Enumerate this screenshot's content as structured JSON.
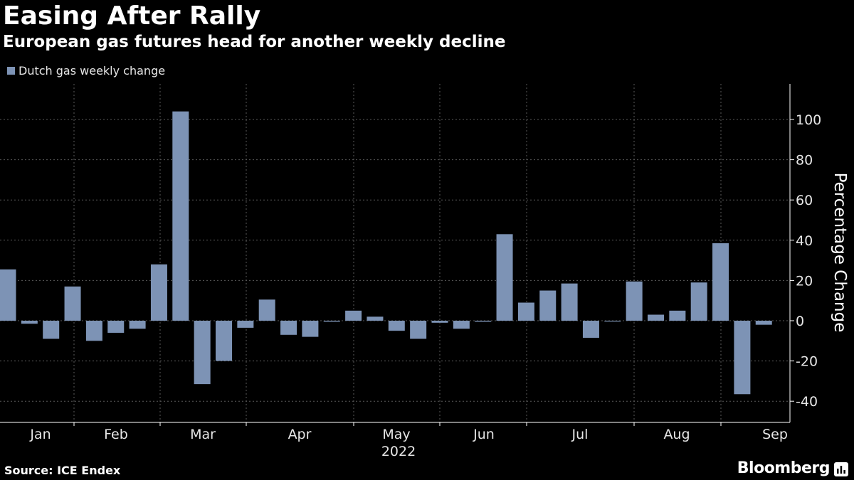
{
  "header": {
    "title": "Easing After Rally",
    "subtitle": "European gas futures head for another weekly decline"
  },
  "footer": {
    "source": "Source: ICE Endex",
    "brand": "Bloomberg"
  },
  "colors": {
    "bar": "#7d93b5",
    "grid": "#5a5a5a",
    "axis": "#ffffff",
    "background": "#000000"
  },
  "chart_data": {
    "type": "bar",
    "title": "Easing After Rally",
    "subtitle": "European gas futures head for another weekly decline",
    "ylabel": "Percentage Change",
    "xlabel": "2022",
    "ylim": [
      -50,
      118
    ],
    "yticks": [
      -40,
      -20,
      0,
      20,
      40,
      60,
      80,
      100
    ],
    "legend": {
      "position": "top-left",
      "entries": [
        "Dutch gas weekly change"
      ]
    },
    "month_labels": [
      "Jan",
      "Feb",
      "Mar",
      "Apr",
      "May",
      "Jun",
      "Jul",
      "Aug",
      "Sep"
    ],
    "year_label": "2022",
    "series": [
      {
        "name": "Dutch gas weekly change",
        "values": [
          25.5,
          -1.5,
          -9,
          17,
          -10,
          -6,
          -4,
          28,
          104,
          -31.5,
          -20,
          -3.5,
          10.5,
          -7,
          -8,
          -0.5,
          5,
          2,
          -5,
          -9,
          -1,
          -4,
          -0.5,
          43,
          9,
          15,
          18.5,
          -8.5,
          -0.3,
          19.5,
          3,
          5,
          19,
          38.5,
          -36.5,
          -2
        ]
      }
    ]
  }
}
